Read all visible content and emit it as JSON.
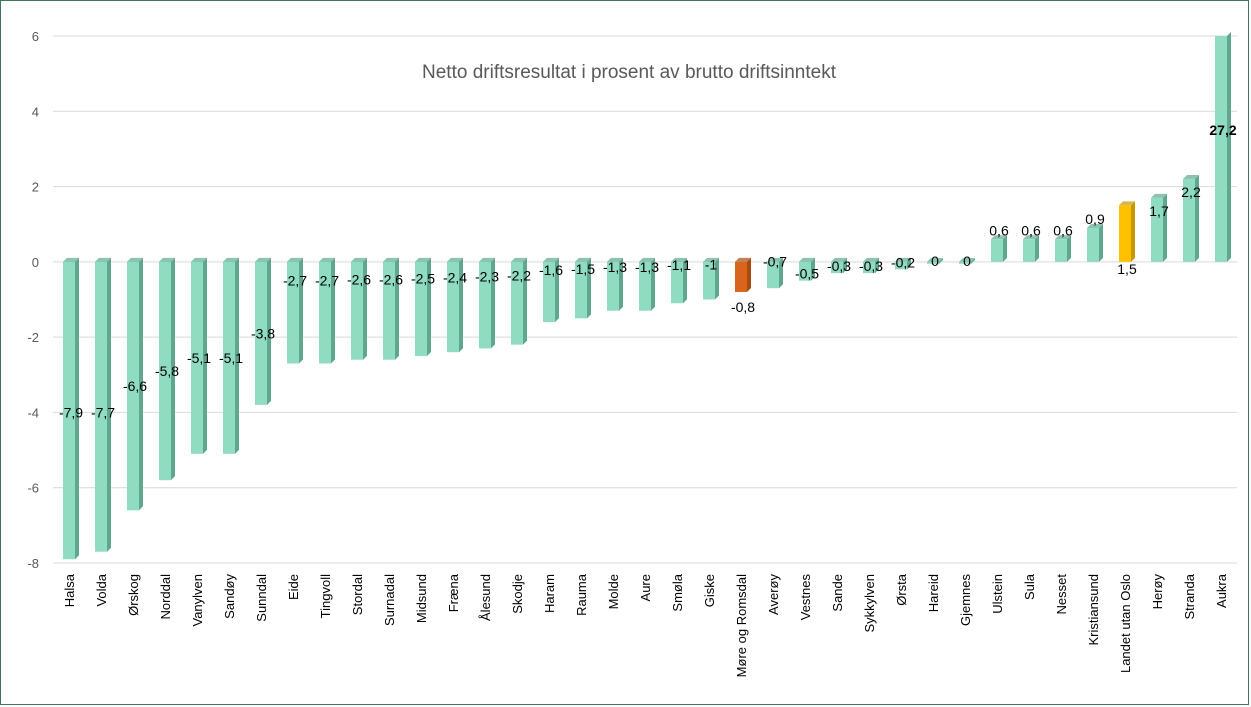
{
  "chart_data": {
    "type": "bar",
    "title": "Netto driftsresultat i prosent av brutto driftsinntekt",
    "xlabel": "",
    "ylabel": "",
    "ylim": [
      -8,
      6
    ],
    "yticks": [
      -8,
      -6,
      -4,
      -2,
      0,
      2,
      4,
      6
    ],
    "grid": true,
    "legend": "none",
    "categories": [
      "Halsa",
      "Volda",
      "Ørskog",
      "Norddal",
      "Vanylven",
      "Sandøy",
      "Sunndal",
      "Eide",
      "Tingvoll",
      "Stordal",
      "Surnadal",
      "Midsund",
      "Fræna",
      "Ålesund",
      "Skodje",
      "Haram",
      "Rauma",
      "Molde",
      "Aure",
      "Smøla",
      "Giske",
      "Møre og Romsdal",
      "Averøy",
      "Vestnes",
      "Sande",
      "Sykkylven",
      "Ørsta",
      "Hareid",
      "Gjemnes",
      "Ulstein",
      "Sula",
      "Nesset",
      "Kristiansund",
      "Landet utan Oslo",
      "Herøy",
      "Stranda",
      "Aukra"
    ],
    "values": [
      -7.9,
      -7.7,
      -6.6,
      -5.8,
      -5.1,
      -5.1,
      -3.8,
      -2.7,
      -2.7,
      -2.6,
      -2.6,
      -2.5,
      -2.4,
      -2.3,
      -2.2,
      -1.6,
      -1.5,
      -1.3,
      -1.3,
      -1.1,
      -1,
      -0.8,
      -0.7,
      -0.5,
      -0.3,
      -0.3,
      -0.2,
      0,
      0,
      0.6,
      0.6,
      0.6,
      0.9,
      1.5,
      1.7,
      2.2,
      27.2
    ],
    "value_labels": [
      "-7,9",
      "-7,7",
      "-6,6",
      "-5,8",
      "-5,1",
      "-5,1",
      "-3,8",
      "-2,7",
      "-2,7",
      "-2,6",
      "-2,6",
      "-2,5",
      "-2,4",
      "-2,3",
      "-2,2",
      "-1,6",
      "-1,5",
      "-1,3",
      "-1,3",
      "-1,1",
      "-1",
      "-0,8",
      "-0,7",
      "-0,5",
      "-0,3",
      "-0,3",
      "-0,2",
      "0",
      "0",
      "0,6",
      "0,6",
      "0,6",
      "0,9",
      "1,5",
      "1,7",
      "2,2",
      "27,2"
    ],
    "highlights": {
      "Møre og Romsdal": "#d9651c",
      "Landet utan Oslo": "#ffc000"
    },
    "colors": {
      "default_bar": "#8fdcc3",
      "default_bar_side": "#5fa88e",
      "county_bar_side": "#a84a10",
      "country_bar_side": "#c99700"
    }
  }
}
